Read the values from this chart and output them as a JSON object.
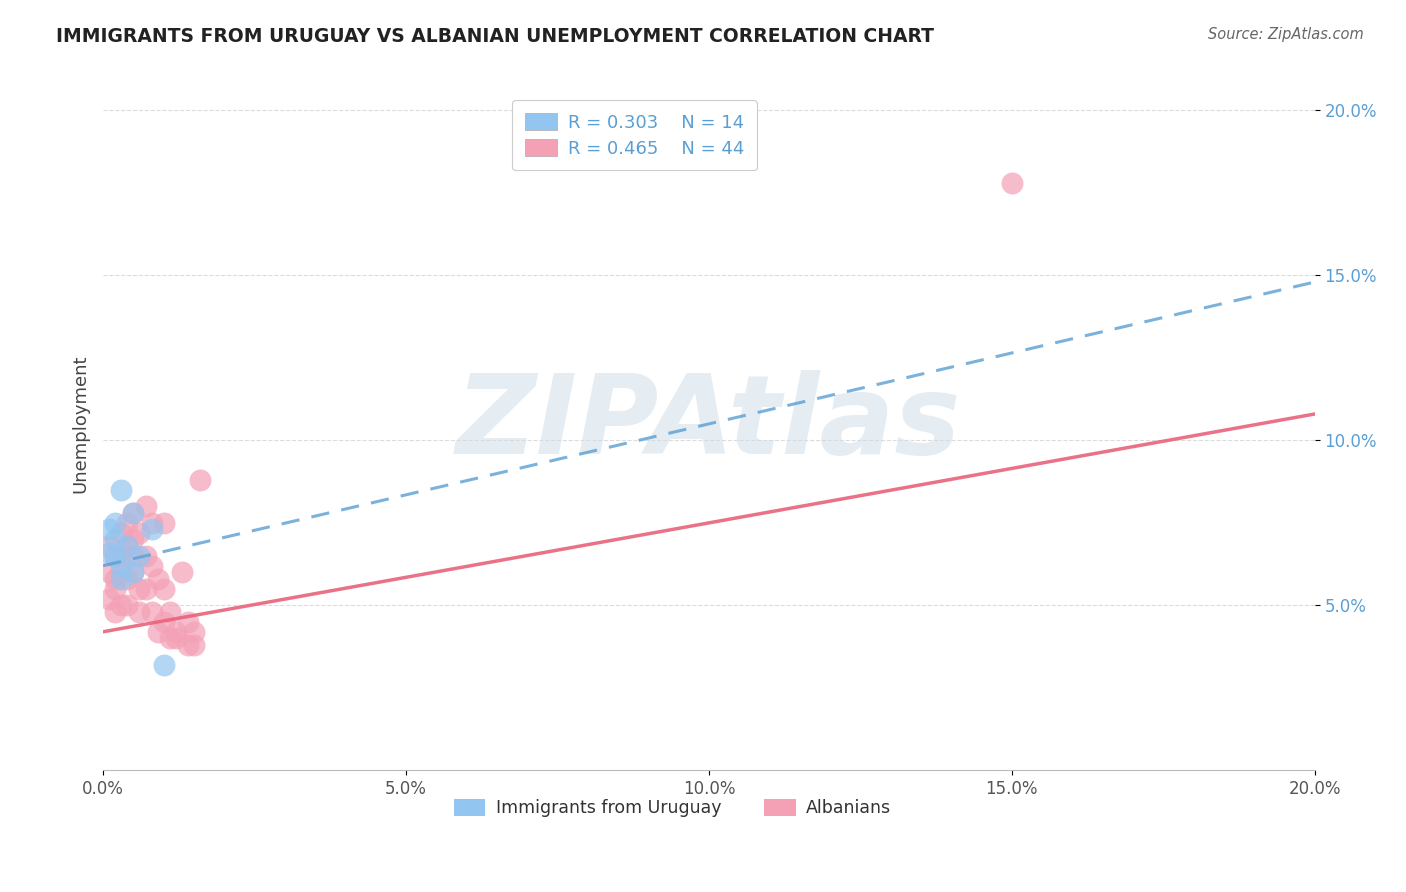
{
  "title": "IMMIGRANTS FROM URUGUAY VS ALBANIAN UNEMPLOYMENT CORRELATION CHART",
  "source": "Source: ZipAtlas.com",
  "ylabel": "Unemployment",
  "xlim": [
    0.0,
    0.2
  ],
  "ylim": [
    0.0,
    0.21
  ],
  "xticks": [
    0.0,
    0.05,
    0.1,
    0.15,
    0.2
  ],
  "xticklabels": [
    "0.0%",
    "5.0%",
    "10.0%",
    "15.0%",
    "20.0%"
  ],
  "yticks": [
    0.05,
    0.1,
    0.15,
    0.2
  ],
  "yticklabels": [
    "5.0%",
    "10.0%",
    "15.0%",
    "20.0%"
  ],
  "uruguay_R": 0.303,
  "uruguay_N": 14,
  "albania_R": 0.465,
  "albania_N": 44,
  "uruguay_color": "#92c5f0",
  "albania_color": "#f4a0b5",
  "uruguay_line_color": "#5a9fd4",
  "albania_line_color": "#e8637a",
  "watermark_text": "ZIPAtlas",
  "watermark_color": "#d0dde8",
  "background_color": "#ffffff",
  "title_color": "#222222",
  "source_color": "#666666",
  "grid_color": "#cccccc",
  "tick_color": "#5a9fd4",
  "uruguay_points": [
    [
      0.001,
      0.066
    ],
    [
      0.001,
      0.073
    ],
    [
      0.002,
      0.07
    ],
    [
      0.002,
      0.065
    ],
    [
      0.002,
      0.075
    ],
    [
      0.003,
      0.062
    ],
    [
      0.003,
      0.058
    ],
    [
      0.003,
      0.085
    ],
    [
      0.004,
      0.068
    ],
    [
      0.005,
      0.06
    ],
    [
      0.005,
      0.078
    ],
    [
      0.006,
      0.065
    ],
    [
      0.008,
      0.073
    ],
    [
      0.01,
      0.032
    ]
  ],
  "albania_points": [
    [
      0.001,
      0.052
    ],
    [
      0.001,
      0.06
    ],
    [
      0.001,
      0.068
    ],
    [
      0.002,
      0.055
    ],
    [
      0.002,
      0.065
    ],
    [
      0.002,
      0.048
    ],
    [
      0.002,
      0.058
    ],
    [
      0.003,
      0.06
    ],
    [
      0.003,
      0.072
    ],
    [
      0.003,
      0.05
    ],
    [
      0.003,
      0.065
    ],
    [
      0.004,
      0.068
    ],
    [
      0.004,
      0.058
    ],
    [
      0.004,
      0.075
    ],
    [
      0.004,
      0.05
    ],
    [
      0.005,
      0.07
    ],
    [
      0.005,
      0.06
    ],
    [
      0.005,
      0.078
    ],
    [
      0.005,
      0.065
    ],
    [
      0.006,
      0.048
    ],
    [
      0.006,
      0.055
    ],
    [
      0.006,
      0.072
    ],
    [
      0.007,
      0.065
    ],
    [
      0.007,
      0.055
    ],
    [
      0.007,
      0.08
    ],
    [
      0.008,
      0.048
    ],
    [
      0.008,
      0.062
    ],
    [
      0.008,
      0.075
    ],
    [
      0.009,
      0.058
    ],
    [
      0.009,
      0.042
    ],
    [
      0.01,
      0.075
    ],
    [
      0.01,
      0.055
    ],
    [
      0.01,
      0.045
    ],
    [
      0.011,
      0.04
    ],
    [
      0.011,
      0.048
    ],
    [
      0.012,
      0.042
    ],
    [
      0.012,
      0.04
    ],
    [
      0.013,
      0.06
    ],
    [
      0.014,
      0.045
    ],
    [
      0.014,
      0.038
    ],
    [
      0.015,
      0.038
    ],
    [
      0.015,
      0.042
    ],
    [
      0.016,
      0.088
    ],
    [
      0.15,
      0.178
    ]
  ],
  "uruguay_line_x": [
    0.0,
    0.2
  ],
  "uruguay_line_y": [
    0.062,
    0.148
  ],
  "albania_line_x": [
    0.0,
    0.2
  ],
  "albania_line_y": [
    0.042,
    0.108
  ]
}
